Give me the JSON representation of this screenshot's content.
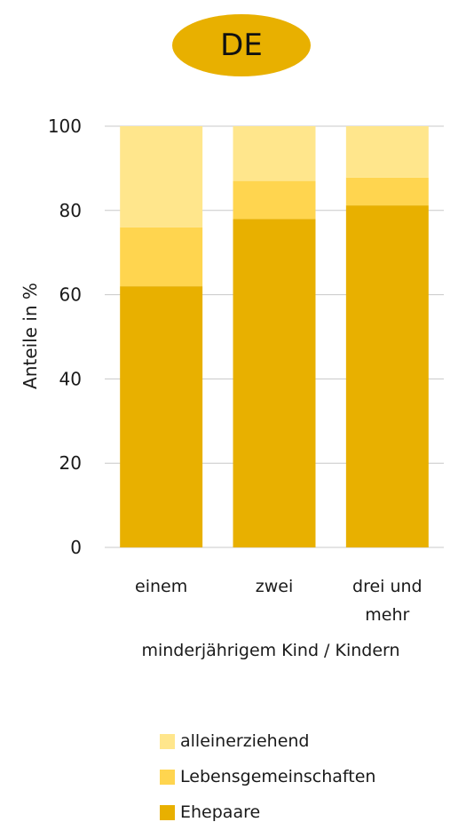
{
  "badge": {
    "label": "DE"
  },
  "chart_data": {
    "type": "bar",
    "stacked": true,
    "categories": [
      "einem",
      "zwei",
      "drei und mehr"
    ],
    "category_lines": [
      [
        "einem"
      ],
      [
        "zwei"
      ],
      [
        "drei und",
        "mehr"
      ]
    ],
    "series": [
      {
        "name": "Ehepaare",
        "values": [
          62,
          78,
          81.2
        ],
        "color": "#e8b000"
      },
      {
        "name": "Lebensgemeinschaften",
        "values": [
          14,
          9,
          6.6
        ],
        "color": "#ffd54f"
      },
      {
        "name": "alleinerziehend",
        "values": [
          24,
          13,
          12.2
        ],
        "color": "#ffe68c"
      }
    ],
    "ylabel": "Anteile in %",
    "xlabel": "minderjährigem Kind / Kindern",
    "ylim": [
      0,
      100
    ],
    "yticks": [
      0,
      20,
      40,
      60,
      80,
      100
    ],
    "grid": true,
    "legend": "bottom",
    "legend_order": [
      "alleinerziehend",
      "Lebensgemeinschaften",
      "Ehepaare"
    ]
  }
}
